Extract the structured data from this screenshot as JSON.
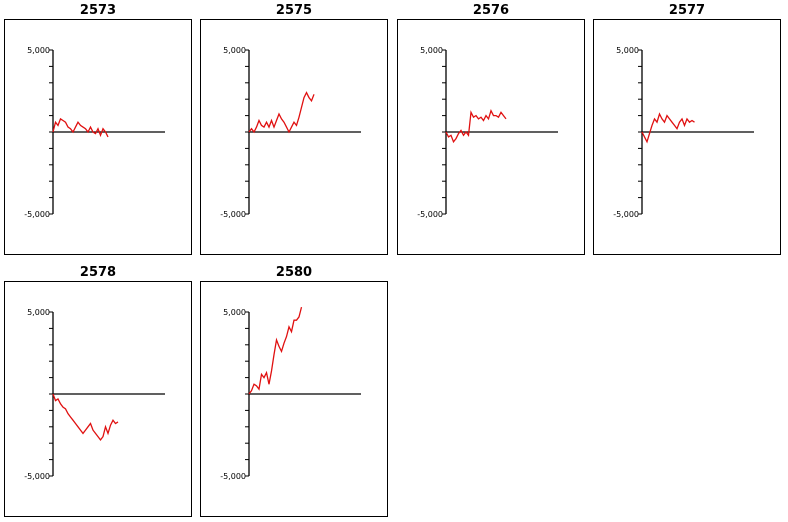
{
  "colors": {
    "series_line": "#e01010",
    "axis": "#000000"
  },
  "chart_data": [
    {
      "type": "line",
      "title": "2573",
      "ylim": [
        -5000,
        5000
      ],
      "y_tick_labels": [
        "5,000",
        "-5,000"
      ],
      "series": [
        {
          "x": [
            0,
            1,
            2,
            3,
            4,
            5,
            6,
            7,
            8,
            9,
            10,
            11,
            12,
            13,
            14,
            15,
            16,
            17,
            18,
            19,
            20,
            21,
            22
          ],
          "values": [
            0,
            600,
            400,
            800,
            700,
            600,
            300,
            200,
            0,
            300,
            600,
            400,
            300,
            200,
            0,
            300,
            0,
            -100,
            200,
            -200,
            200,
            0,
            -300
          ]
        }
      ]
    },
    {
      "type": "line",
      "title": "2575",
      "ylim": [
        -5000,
        5000
      ],
      "y_tick_labels": [
        "5,000",
        "-5,000"
      ],
      "series": [
        {
          "x": [
            0,
            1,
            2,
            3,
            4,
            5,
            6,
            7,
            8,
            9,
            10,
            11,
            12,
            13,
            14,
            15,
            16,
            17,
            18,
            19,
            20,
            21,
            22,
            23,
            24,
            25,
            26
          ],
          "values": [
            0,
            200,
            0,
            300,
            700,
            400,
            300,
            600,
            300,
            700,
            300,
            700,
            1100,
            800,
            600,
            300,
            0,
            300,
            600,
            400,
            900,
            1500,
            2100,
            2400,
            2100,
            1900,
            2300
          ]
        }
      ]
    },
    {
      "type": "line",
      "title": "2576",
      "ylim": [
        -5000,
        5000
      ],
      "y_tick_labels": [
        "5,000",
        "-5,000"
      ],
      "series": [
        {
          "x": [
            0,
            1,
            2,
            3,
            4,
            5,
            6,
            7,
            8,
            9,
            10,
            11,
            12,
            13,
            14,
            15,
            16,
            17,
            18,
            19,
            20,
            21,
            22,
            23,
            24
          ],
          "values": [
            0,
            -300,
            -200,
            -600,
            -400,
            -100,
            100,
            -200,
            0,
            -200,
            1200,
            900,
            1000,
            800,
            900,
            700,
            1000,
            800,
            1300,
            1000,
            1000,
            900,
            1200,
            1000,
            800
          ]
        }
      ]
    },
    {
      "type": "line",
      "title": "2577",
      "ylim": [
        -5000,
        5000
      ],
      "y_tick_labels": [
        "5,000",
        "-5,000"
      ],
      "series": [
        {
          "x": [
            0,
            1,
            2,
            3,
            4,
            5,
            6,
            7,
            8,
            9,
            10,
            11,
            12,
            13,
            14,
            15,
            16,
            17,
            18,
            19,
            20,
            21
          ],
          "values": [
            0,
            -300,
            -600,
            -100,
            400,
            800,
            600,
            1100,
            800,
            600,
            1000,
            800,
            600,
            400,
            200,
            600,
            800,
            400,
            800,
            600,
            700,
            600
          ]
        }
      ]
    },
    {
      "type": "line",
      "title": "2578",
      "ylim": [
        -5000,
        5000
      ],
      "y_tick_labels": [
        "5,000",
        "-5,000"
      ],
      "series": [
        {
          "x": [
            0,
            1,
            2,
            3,
            4,
            5,
            6,
            7,
            8,
            9,
            10,
            11,
            12,
            13,
            14,
            15,
            16,
            17,
            18,
            19,
            20,
            21,
            22,
            23,
            24,
            25,
            26
          ],
          "values": [
            0,
            -400,
            -300,
            -600,
            -800,
            -900,
            -1200,
            -1400,
            -1600,
            -1800,
            -2000,
            -2200,
            -2400,
            -2200,
            -2000,
            -1800,
            -2200,
            -2400,
            -2600,
            -2800,
            -2600,
            -2000,
            -2400,
            -1900,
            -1600,
            -1800,
            -1700
          ]
        }
      ]
    },
    {
      "type": "line",
      "title": "2580",
      "ylim": [
        -5000,
        5000
      ],
      "y_tick_labels": [
        "5,000",
        "-5,000"
      ],
      "series": [
        {
          "x": [
            0,
            1,
            2,
            3,
            4,
            5,
            6,
            7,
            8,
            9,
            10,
            11,
            12,
            13,
            14,
            15,
            16,
            17,
            18,
            19,
            20,
            21
          ],
          "values": [
            0,
            200,
            600,
            500,
            300,
            1200,
            1000,
            1300,
            600,
            1400,
            2400,
            3300,
            2900,
            2600,
            3100,
            3500,
            4100,
            3800,
            4500,
            4500,
            4700,
            5300
          ]
        }
      ]
    }
  ]
}
